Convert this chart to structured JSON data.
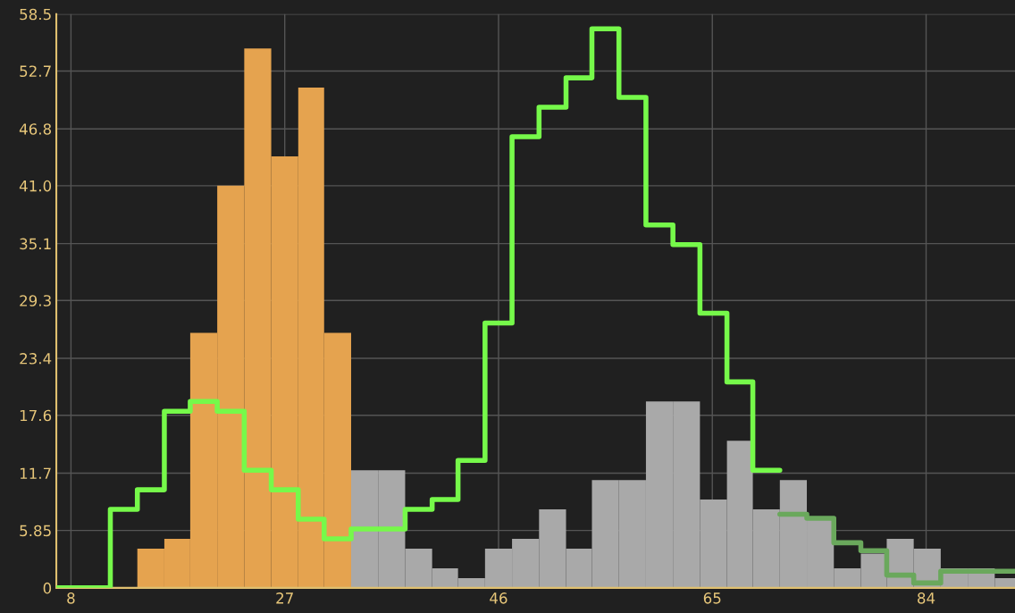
{
  "chart_data": {
    "type": "histogram",
    "bins": [
      13.9,
      16.3,
      18.6,
      21.0,
      23.4,
      25.8,
      28.2,
      30.5,
      32.9,
      35.3,
      37.7,
      40.1,
      42.4,
      44.8,
      47.2,
      49.6,
      52.0,
      54.3,
      56.7,
      59.1,
      61.5,
      63.9,
      66.3,
      68.6,
      71.0,
      73.4,
      75.8,
      78.2,
      80.5,
      82.9,
      85.3,
      87.7,
      90.1,
      91.9
    ],
    "series": [
      {
        "color": "#e5a34f",
        "values": [
          4,
          5,
          26,
          41,
          55,
          44,
          51,
          26,
          null,
          null,
          null,
          null,
          null,
          null,
          null,
          null,
          null,
          null,
          null,
          null,
          null,
          null,
          null,
          null,
          null,
          null,
          null,
          null,
          null,
          null,
          null,
          null,
          null
        ]
      },
      {
        "color": "#a9a9a9",
        "values": [
          null,
          null,
          null,
          null,
          null,
          null,
          null,
          null,
          12,
          12,
          4,
          2,
          1,
          4,
          5,
          8,
          4,
          11,
          11,
          19,
          19,
          9,
          15,
          8,
          11,
          7,
          2,
          3.5,
          5,
          4,
          2,
          2,
          1
        ]
      },
      {
        "type": "step",
        "color": "#76f94a",
        "x": [
          6.7,
          9.1,
          11.5,
          13.9,
          16.3,
          18.6,
          21.0,
          23.4,
          25.8,
          28.2,
          30.5,
          32.9,
          35.3,
          37.7,
          40.1,
          42.4,
          44.8,
          47.2,
          49.6,
          52.0,
          54.3,
          56.7,
          59.1,
          61.5,
          63.9,
          66.3,
          68.6,
          71.0
        ],
        "values": [
          0,
          0,
          8,
          10,
          18,
          19,
          18,
          12,
          10,
          7,
          5,
          6,
          6,
          8,
          9,
          13,
          27,
          46,
          49,
          52,
          57,
          50,
          37,
          35,
          28,
          21,
          12,
          12
        ]
      },
      {
        "type": "step",
        "color": "#6aa85c",
        "x": [
          71.0,
          73.4,
          75.8,
          78.2,
          80.5,
          82.9,
          85.3,
          87.7,
          90.1,
          91.9
        ],
        "values": [
          7.5,
          7.1,
          4.6,
          3.8,
          1.3,
          0.5,
          1.7,
          1.7,
          1.7,
          1.7
        ]
      }
    ],
    "xlim": [
      6.7,
      91.9
    ],
    "xticks": [
      8,
      27,
      46,
      65,
      84
    ],
    "ylim": [
      0,
      58.5
    ],
    "yticks": [
      0,
      5.85,
      11.7,
      17.6,
      23.4,
      29.3,
      35.1,
      {
        "value": 41,
        "label": "41.0"
      },
      46.8,
      52.7,
      58.5
    ],
    "grid": true
  }
}
